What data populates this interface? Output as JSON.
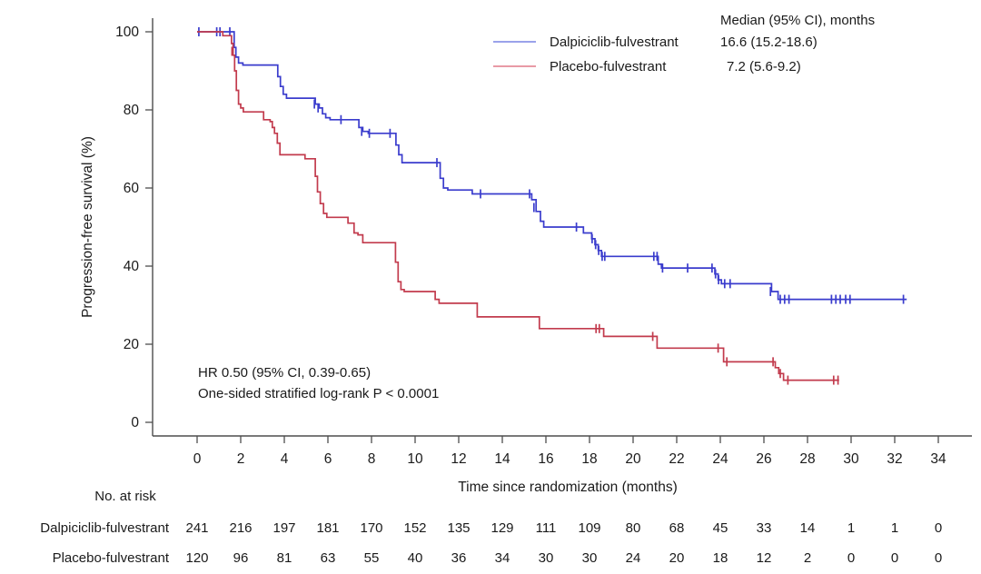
{
  "chart_data": {
    "type": "line",
    "subtype": "kaplan-meier-step",
    "xlabel": "Time since randomization (months)",
    "ylabel": "Progression-free survival (%)",
    "xlim": [
      0,
      34
    ],
    "ylim": [
      0,
      100
    ],
    "x_ticks": [
      0,
      2,
      4,
      6,
      8,
      10,
      12,
      14,
      16,
      18,
      20,
      22,
      24,
      26,
      28,
      30,
      32,
      34
    ],
    "y_ticks": [
      0,
      20,
      40,
      60,
      80,
      100
    ],
    "grid": "off",
    "legend_position": "top-right-inside",
    "legend_header": "Median (95% CI), months",
    "axis_color": "#4d4d4d",
    "text_color": "#1a1a1a",
    "series": [
      {
        "name": "Dalpiciclib-fulvestrant",
        "median_ci": "16.6 (15.2-18.6)",
        "color": "#3a3ccd",
        "legend_color": "#9aa2ea",
        "steps": [
          [
            0,
            100
          ],
          [
            1.65,
            100
          ],
          [
            1.7,
            96
          ],
          [
            1.78,
            93.5
          ],
          [
            1.9,
            92
          ],
          [
            2.1,
            91.5
          ],
          [
            3.6,
            91.5
          ],
          [
            3.7,
            88.5
          ],
          [
            3.82,
            86
          ],
          [
            3.95,
            84
          ],
          [
            4.1,
            83
          ],
          [
            5.3,
            83
          ],
          [
            5.42,
            81.5
          ],
          [
            5.6,
            80.5
          ],
          [
            5.75,
            79
          ],
          [
            5.9,
            78
          ],
          [
            6.1,
            77.5
          ],
          [
            7.3,
            77.5
          ],
          [
            7.42,
            75.5
          ],
          [
            7.6,
            74.5
          ],
          [
            7.85,
            74
          ],
          [
            9.0,
            74
          ],
          [
            9.12,
            71
          ],
          [
            9.25,
            68.5
          ],
          [
            9.4,
            66.5
          ],
          [
            11.0,
            66.5
          ],
          [
            11.15,
            62.5
          ],
          [
            11.3,
            60
          ],
          [
            11.5,
            59.5
          ],
          [
            12.5,
            59.5
          ],
          [
            12.62,
            58.5
          ],
          [
            15.2,
            58.5
          ],
          [
            15.35,
            57
          ],
          [
            15.55,
            54
          ],
          [
            15.75,
            51.5
          ],
          [
            15.9,
            50
          ],
          [
            17.6,
            50
          ],
          [
            17.72,
            48.5
          ],
          [
            18.1,
            47
          ],
          [
            18.25,
            45.5
          ],
          [
            18.4,
            44
          ],
          [
            18.55,
            42.5
          ],
          [
            21.0,
            42.5
          ],
          [
            21.15,
            40.5
          ],
          [
            21.3,
            39.5
          ],
          [
            23.6,
            39.5
          ],
          [
            23.75,
            38
          ],
          [
            23.9,
            36.5
          ],
          [
            24.05,
            35.5
          ],
          [
            26.2,
            35.5
          ],
          [
            26.35,
            33.5
          ],
          [
            26.65,
            31.5
          ],
          [
            32.55,
            31.5
          ]
        ],
        "censors": [
          [
            0.08,
            100
          ],
          [
            0.9,
            100
          ],
          [
            1.05,
            100
          ],
          [
            1.5,
            100
          ],
          [
            5.38,
            81.5
          ],
          [
            5.55,
            80.5
          ],
          [
            6.6,
            77.5
          ],
          [
            7.55,
            74.5
          ],
          [
            7.9,
            74
          ],
          [
            8.85,
            74
          ],
          [
            11.0,
            66.5
          ],
          [
            13.0,
            58.5
          ],
          [
            15.25,
            58.5
          ],
          [
            15.45,
            55
          ],
          [
            17.4,
            50
          ],
          [
            18.12,
            47
          ],
          [
            18.28,
            45.5
          ],
          [
            18.42,
            44
          ],
          [
            18.58,
            42.5
          ],
          [
            18.7,
            42.5
          ],
          [
            20.95,
            42.5
          ],
          [
            21.1,
            42.5
          ],
          [
            21.35,
            39.5
          ],
          [
            22.5,
            39.5
          ],
          [
            23.62,
            39.5
          ],
          [
            23.78,
            38
          ],
          [
            23.92,
            36.5
          ],
          [
            24.2,
            35.5
          ],
          [
            24.45,
            35.5
          ],
          [
            26.3,
            33.5
          ],
          [
            26.75,
            31.5
          ],
          [
            26.95,
            31.5
          ],
          [
            27.15,
            31.5
          ],
          [
            29.1,
            31.5
          ],
          [
            29.3,
            31.5
          ],
          [
            29.5,
            31.5
          ],
          [
            29.75,
            31.5
          ],
          [
            29.95,
            31.5
          ],
          [
            32.4,
            31.5
          ]
        ]
      },
      {
        "name": "Placebo-fulvestrant",
        "median_ci": "7.2 (5.6-9.2)",
        "color": "#c23b4d",
        "legend_color": "#e89aa6",
        "steps": [
          [
            0,
            100
          ],
          [
            1.1,
            100
          ],
          [
            1.18,
            99
          ],
          [
            1.5,
            99
          ],
          [
            1.58,
            97
          ],
          [
            1.65,
            94
          ],
          [
            1.72,
            90
          ],
          [
            1.8,
            85
          ],
          [
            1.9,
            81.5
          ],
          [
            2.0,
            80.5
          ],
          [
            2.12,
            79.5
          ],
          [
            2.95,
            79.5
          ],
          [
            3.05,
            77.5
          ],
          [
            3.35,
            77
          ],
          [
            3.45,
            75.5
          ],
          [
            3.55,
            74
          ],
          [
            3.68,
            71.5
          ],
          [
            3.8,
            68.5
          ],
          [
            4.85,
            68.5
          ],
          [
            4.95,
            67.5
          ],
          [
            5.33,
            67.5
          ],
          [
            5.42,
            63
          ],
          [
            5.52,
            59
          ],
          [
            5.65,
            56
          ],
          [
            5.8,
            53.5
          ],
          [
            5.95,
            52.5
          ],
          [
            6.8,
            52.5
          ],
          [
            6.92,
            51
          ],
          [
            7.2,
            48.5
          ],
          [
            7.38,
            48
          ],
          [
            7.6,
            46
          ],
          [
            9.0,
            46
          ],
          [
            9.1,
            41
          ],
          [
            9.22,
            36
          ],
          [
            9.35,
            34
          ],
          [
            9.5,
            33.5
          ],
          [
            10.8,
            33.5
          ],
          [
            10.92,
            31.5
          ],
          [
            11.1,
            30.5
          ],
          [
            12.7,
            30.5
          ],
          [
            12.85,
            27
          ],
          [
            15.5,
            27
          ],
          [
            15.7,
            24
          ],
          [
            18.5,
            24
          ],
          [
            18.65,
            22
          ],
          [
            20.9,
            22
          ],
          [
            21.1,
            19
          ],
          [
            23.95,
            19
          ],
          [
            24.15,
            15.5
          ],
          [
            26.35,
            15.5
          ],
          [
            26.52,
            14
          ],
          [
            26.68,
            12.5
          ],
          [
            26.9,
            10.8
          ],
          [
            29.45,
            10.8
          ]
        ],
        "censors": [
          [
            1.6,
            95
          ],
          [
            18.3,
            24
          ],
          [
            18.45,
            24
          ],
          [
            20.9,
            22
          ],
          [
            23.9,
            19
          ],
          [
            24.3,
            15.5
          ],
          [
            26.42,
            15.5
          ],
          [
            26.75,
            12.5
          ],
          [
            27.1,
            10.8
          ],
          [
            29.2,
            10.8
          ],
          [
            29.4,
            10.8
          ]
        ]
      }
    ],
    "annotations": {
      "line1": "HR 0.50 (95% CI, 0.39-0.65)",
      "line2": "One-sided stratified log-rank P < 0.0001"
    },
    "at_risk_table": {
      "title": "No. at risk",
      "timepoints": [
        0,
        2,
        4,
        6,
        8,
        10,
        12,
        14,
        16,
        18,
        20,
        22,
        24,
        26,
        28,
        30,
        32,
        34
      ],
      "rows": [
        {
          "name": "Dalpiciclib-fulvestrant",
          "values": [
            241,
            216,
            197,
            181,
            170,
            152,
            135,
            129,
            111,
            109,
            80,
            68,
            45,
            33,
            14,
            1,
            1,
            0
          ]
        },
        {
          "name": "Placebo-fulvestrant",
          "values": [
            120,
            96,
            81,
            63,
            55,
            40,
            36,
            34,
            30,
            30,
            24,
            20,
            18,
            12,
            2,
            0,
            0,
            0
          ]
        }
      ]
    }
  }
}
